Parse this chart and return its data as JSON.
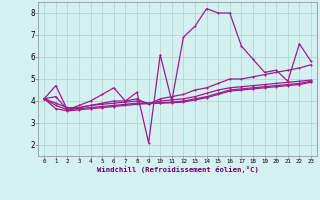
{
  "x": [
    0,
    1,
    2,
    3,
    4,
    5,
    6,
    7,
    8,
    9,
    10,
    11,
    12,
    13,
    14,
    15,
    16,
    17,
    18,
    19,
    20,
    21,
    22,
    23
  ],
  "line1": [
    4.1,
    4.7,
    3.6,
    3.8,
    4.0,
    4.3,
    4.6,
    4.0,
    4.4,
    2.1,
    6.1,
    4.0,
    6.9,
    7.4,
    8.2,
    8.0,
    8.0,
    6.5,
    5.9,
    5.3,
    5.4,
    4.9,
    6.6,
    5.8
  ],
  "line2": [
    4.1,
    4.2,
    3.6,
    3.7,
    3.8,
    3.9,
    4.0,
    4.0,
    4.1,
    3.85,
    4.1,
    4.2,
    4.3,
    4.5,
    4.6,
    4.8,
    5.0,
    5.0,
    5.1,
    5.2,
    5.3,
    5.4,
    5.5,
    5.65
  ],
  "line3": [
    4.1,
    3.9,
    3.7,
    3.7,
    3.8,
    3.85,
    3.9,
    3.95,
    4.0,
    3.9,
    4.0,
    4.05,
    4.1,
    4.2,
    4.35,
    4.5,
    4.6,
    4.65,
    4.7,
    4.75,
    4.8,
    4.85,
    4.9,
    4.95
  ],
  "line4": [
    4.1,
    3.8,
    3.6,
    3.65,
    3.7,
    3.75,
    3.8,
    3.85,
    3.9,
    3.9,
    3.92,
    3.95,
    4.0,
    4.1,
    4.2,
    4.35,
    4.5,
    4.55,
    4.6,
    4.65,
    4.7,
    4.75,
    4.8,
    4.9
  ],
  "line5": [
    4.1,
    3.65,
    3.55,
    3.6,
    3.65,
    3.7,
    3.75,
    3.8,
    3.85,
    3.88,
    3.9,
    3.92,
    3.95,
    4.05,
    4.15,
    4.3,
    4.45,
    4.5,
    4.55,
    4.6,
    4.65,
    4.7,
    4.75,
    4.85
  ],
  "line_color": "#9b1d8a",
  "bg_color": "#d5f0f0",
  "grid_color": "#b0d8d8",
  "xlabel": "Windchill (Refroidissement éolien,°C)",
  "ylim": [
    1.5,
    8.5
  ],
  "xlim": [
    -0.5,
    23.5
  ],
  "yticks": [
    2,
    3,
    4,
    5,
    6,
    7,
    8
  ],
  "xticks": [
    0,
    1,
    2,
    3,
    4,
    5,
    6,
    7,
    8,
    9,
    10,
    11,
    12,
    13,
    14,
    15,
    16,
    17,
    18,
    19,
    20,
    21,
    22,
    23
  ],
  "xtick_labels": [
    "0",
    "1",
    "2",
    "3",
    "4",
    "5",
    "6",
    "7",
    "8",
    "9",
    "10",
    "11",
    "12",
    "13",
    "14",
    "15",
    "16",
    "17",
    "18",
    "19",
    "20",
    "21",
    "22",
    "23"
  ]
}
